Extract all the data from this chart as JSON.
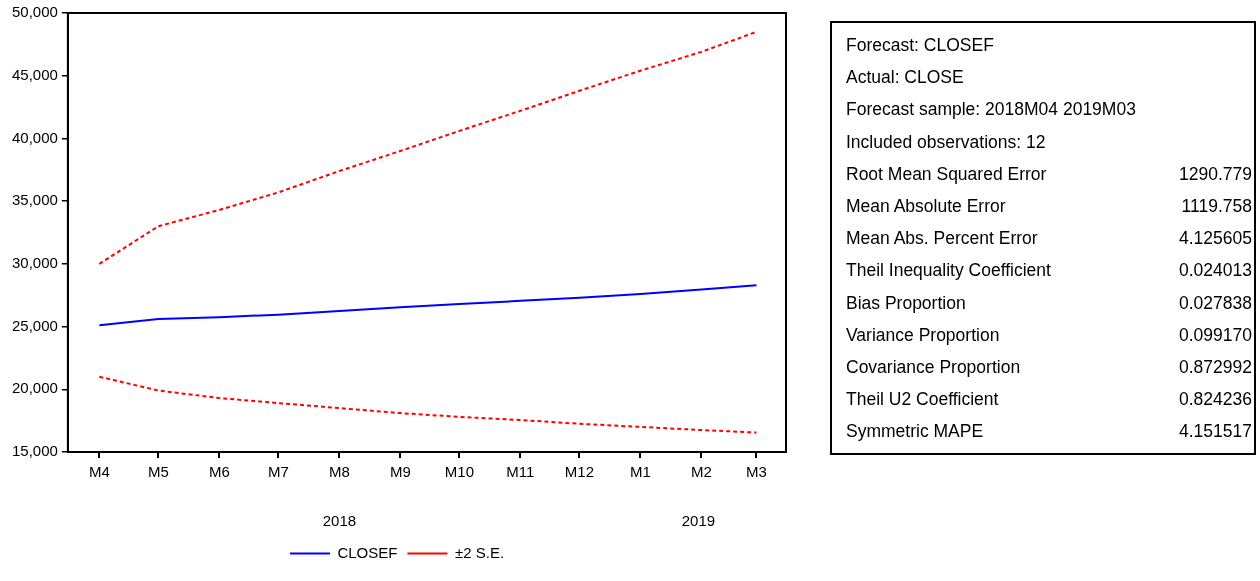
{
  "chart_data": [
    {
      "type": "line",
      "x": [
        "2018-04",
        "2018-05",
        "2018-06",
        "2018-07",
        "2018-08",
        "2018-09",
        "2018-10",
        "2018-11",
        "2018-12",
        "2019-01",
        "2019-02",
        "2019-03"
      ],
      "xlim": [
        "2018-03-16",
        "2019-03-16"
      ],
      "xticks": [
        {
          "value": "2018-04",
          "label": "M4"
        },
        {
          "value": "2018-05",
          "label": "M5"
        },
        {
          "value": "2018-06",
          "label": "M6"
        },
        {
          "value": "2018-07",
          "label": "M7"
        },
        {
          "value": "2018-08",
          "label": "M8"
        },
        {
          "value": "2018-09",
          "label": "M9"
        },
        {
          "value": "2018-10",
          "label": "M10"
        },
        {
          "value": "2018-11",
          "label": "M11"
        },
        {
          "value": "2018-12",
          "label": "M12"
        },
        {
          "value": "2019-01",
          "label": "M1"
        },
        {
          "value": "2019-02",
          "label": "M2"
        },
        {
          "value": "2019-03",
          "label": "M3"
        }
      ],
      "series": [
        {
          "name": "CLOSEF",
          "color": "#0000ff",
          "line_style": "solid",
          "values": [
            25100,
            25600,
            25750,
            25950,
            26250,
            26550,
            26800,
            27050,
            27300,
            27600,
            27950,
            28300
          ]
        },
        {
          "name": "±2 S.E.",
          "color": "#ff0000",
          "line_style": "dashed",
          "values": [
            30000,
            33000,
            34300,
            35700,
            37400,
            39000,
            40600,
            42200,
            43800,
            45400,
            46900,
            48500
          ]
        },
        {
          "color": "#ff0000",
          "line_style": "dashed",
          "values": [
            21000,
            19900,
            19300,
            18900,
            18500,
            18100,
            17800,
            17550,
            17250,
            17000,
            16750,
            16550
          ]
        }
      ],
      "ylim": [
        15000,
        50000
      ],
      "yticks": [
        {
          "value": 15000,
          "label": "15,000"
        },
        {
          "value": 20000,
          "label": "20,000"
        },
        {
          "value": 25000,
          "label": "25,000"
        },
        {
          "value": 30000,
          "label": "30,000"
        },
        {
          "value": 35000,
          "label": "35,000"
        },
        {
          "value": 40000,
          "label": "40,000"
        },
        {
          "value": 45000,
          "label": "45,000"
        },
        {
          "value": 50000,
          "label": "50,000"
        }
      ],
      "annotations": [
        "2018",
        "2019"
      ],
      "grid": false,
      "legend": "bottom",
      "marker": "none"
    },
    {
      "type": "other",
      "annotations": [
        "Forecast: CLOSEF",
        "Actual: CLOSE",
        "Forecast sample: 2018M04 2019M03",
        "Included observations: 12"
      ],
      "categories": [
        "Root Mean Squared Error",
        "Mean Absolute Error",
        "Mean Abs. Percent Error",
        "Theil Inequality Coefficient",
        "Bias Proportion",
        "Variance Proportion",
        "Covariance Proportion",
        "Theil U2 Coefficient",
        "Symmetric MAPE"
      ],
      "values": [
        1290.779,
        1119.758,
        4.125605,
        0.024013,
        0.027838,
        0.09917,
        0.872992,
        0.824236,
        4.151517
      ],
      "value_labels": [
        "1290.779",
        "1119.758",
        "4.125605",
        "0.024013",
        "0.027838",
        "0.099170",
        "0.872992",
        "0.824236",
        "4.151517"
      ]
    }
  ]
}
